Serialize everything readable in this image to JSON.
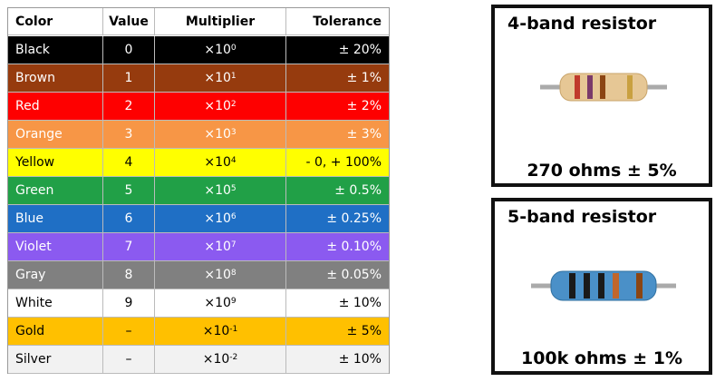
{
  "table": {
    "header": [
      "Color",
      "Value",
      "Multiplier",
      "Tolerance"
    ],
    "rows": [
      {
        "color_name": "Black",
        "value": "0",
        "multiplier": {
          "base": "×10",
          "exp": "0"
        },
        "tolerance": "± 20%",
        "fill": "#000000",
        "text_color": "#ffffff"
      },
      {
        "color_name": "Brown",
        "value": "1",
        "multiplier": {
          "base": "×10",
          "exp": "1"
        },
        "tolerance": "± 1%",
        "fill": "#963b0e",
        "text_color": "#ffffff"
      },
      {
        "color_name": "Red",
        "value": "2",
        "multiplier": {
          "base": "×10",
          "exp": "2"
        },
        "tolerance": "± 2%",
        "fill": "#fe0000",
        "text_color": "#ffffff"
      },
      {
        "color_name": "Orange",
        "value": "3",
        "multiplier": {
          "base": "×10",
          "exp": "3"
        },
        "tolerance": "± 3%",
        "fill": "#f79646",
        "text_color": "#ffffff"
      },
      {
        "color_name": "Yellow",
        "value": "4",
        "multiplier": {
          "base": "×10",
          "exp": "4"
        },
        "tolerance": "- 0, + 100%",
        "fill": "#ffff00",
        "text_color": "#000000"
      },
      {
        "color_name": "Green",
        "value": "5",
        "multiplier": {
          "base": "×10",
          "exp": "5"
        },
        "tolerance": "± 0.5%",
        "fill": "#21a047",
        "text_color": "#ffffff"
      },
      {
        "color_name": "Blue",
        "value": "6",
        "multiplier": {
          "base": "×10",
          "exp": "6"
        },
        "tolerance": "± 0.25%",
        "fill": "#1f6fc5",
        "text_color": "#ffffff"
      },
      {
        "color_name": "Violet",
        "value": "7",
        "multiplier": {
          "base": "×10",
          "exp": "7"
        },
        "tolerance": "± 0.10%",
        "fill": "#8b5af0",
        "text_color": "#ffffff"
      },
      {
        "color_name": "Gray",
        "value": "8",
        "multiplier": {
          "base": "×10",
          "exp": "8"
        },
        "tolerance": "± 0.05%",
        "fill": "#808080",
        "text_color": "#ffffff"
      },
      {
        "color_name": "White",
        "value": "9",
        "multiplier": {
          "base": "×10",
          "exp": "9"
        },
        "tolerance": "± 10%",
        "fill": "#ffffff",
        "text_color": "#000000"
      },
      {
        "color_name": "Gold",
        "value": "–",
        "multiplier": {
          "base": "×10",
          "exp": "-1"
        },
        "tolerance": "± 5%",
        "fill": "#ffc000",
        "text_color": "#000000"
      },
      {
        "color_name": "Silver",
        "value": "–",
        "multiplier": {
          "base": "×10",
          "exp": "-2"
        },
        "tolerance": "± 10%",
        "fill": "#f2f2f2",
        "text_color": "#000000"
      }
    ]
  },
  "panels": [
    {
      "title": "4-band resistor",
      "caption": "270 ohms ± 5%"
    },
    {
      "title": "5-band resistor",
      "caption": "100k ohms ± 1%"
    }
  ]
}
